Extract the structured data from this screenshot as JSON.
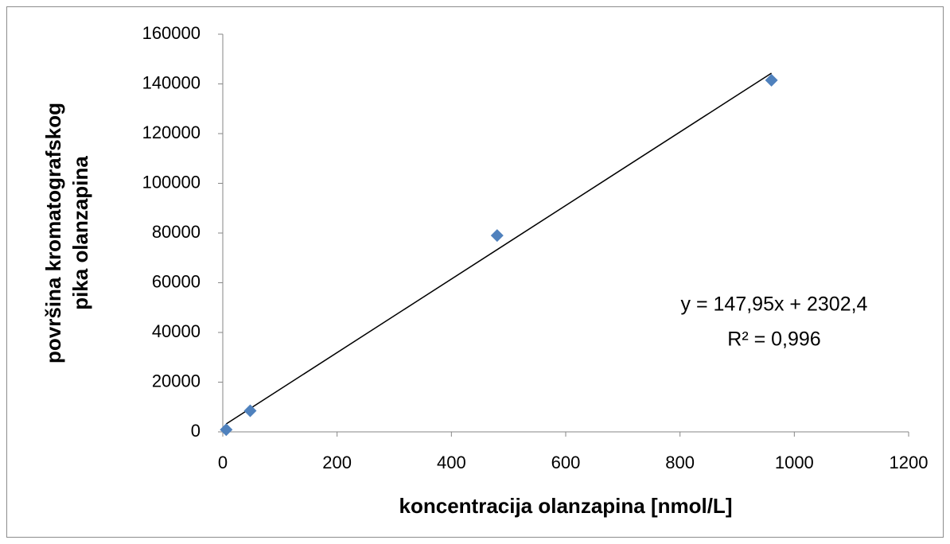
{
  "chart_data": {
    "type": "scatter",
    "x_label": "koncentracija olanzapina [nmol/L]",
    "y_label": [
      "površina kromatografskog",
      "pika olanzapina"
    ],
    "series": [
      {
        "color": "#4f81bd",
        "x": [
          6,
          48,
          480,
          960
        ],
        "values": [
          900,
          8500,
          79000,
          141500
        ]
      }
    ],
    "trendline": {
      "slope": 147.95,
      "intercept": 2302.4,
      "color": "#000000",
      "equation": "y = 147,95x + 2302,4",
      "r2": "R² = 0,996"
    },
    "xlim": [
      0,
      1200
    ],
    "xticks": [
      0,
      200,
      400,
      600,
      800,
      1000,
      1200
    ],
    "ylim": [
      0,
      160000
    ],
    "yticks": [
      0,
      20000,
      40000,
      60000,
      80000,
      100000,
      120000,
      140000,
      160000
    ],
    "grid": false
  }
}
